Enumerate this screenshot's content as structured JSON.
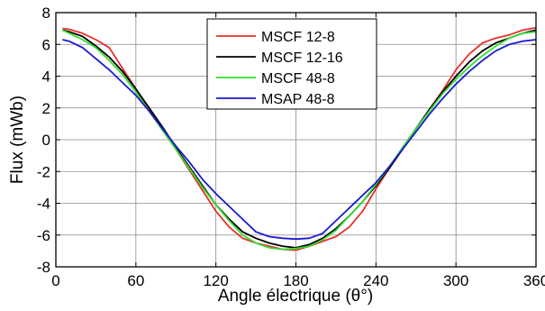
{
  "chart_data": {
    "type": "line",
    "xlabel": "Angle électrique (θ°)",
    "ylabel": "Flux (mWb)",
    "xlim": [
      0,
      360
    ],
    "ylim": [
      -8,
      8
    ],
    "xticks": [
      0,
      60,
      120,
      180,
      240,
      300,
      360
    ],
    "yticks": [
      -8,
      -6,
      -4,
      -2,
      0,
      2,
      4,
      6,
      8
    ],
    "xtick_labels": [
      "0",
      "60",
      "120",
      "180",
      "240",
      "300",
      "360"
    ],
    "ytick_labels": [
      "-8",
      "-6",
      "-4",
      "-2",
      "0",
      "2",
      "4",
      "6",
      "8"
    ],
    "grid": true,
    "legend_position": "top-center",
    "x": [
      5,
      10,
      20,
      30,
      40,
      50,
      60,
      70,
      80,
      90,
      100,
      110,
      120,
      130,
      140,
      150,
      160,
      170,
      180,
      190,
      200,
      210,
      220,
      230,
      240,
      250,
      260,
      270,
      280,
      290,
      300,
      310,
      320,
      330,
      340,
      350,
      360
    ],
    "series": [
      {
        "name": "MSCF 12-8",
        "color": "#e8302a",
        "values": [
          7.0,
          6.95,
          6.7,
          6.3,
          5.8,
          4.5,
          3.2,
          1.9,
          0.6,
          -0.6,
          -1.9,
          -3.2,
          -4.5,
          -5.5,
          -6.2,
          -6.5,
          -6.7,
          -6.9,
          -6.95,
          -6.7,
          -6.4,
          -6.1,
          -5.5,
          -4.5,
          -3.1,
          -1.8,
          -0.5,
          0.7,
          1.9,
          3.1,
          4.4,
          5.4,
          6.1,
          6.4,
          6.6,
          6.9,
          7.05
        ]
      },
      {
        "name": "MSCF 12-16",
        "color": "#000000",
        "values": [
          6.9,
          6.8,
          6.5,
          5.9,
          5.2,
          4.3,
          3.2,
          2.0,
          0.8,
          -0.5,
          -1.7,
          -2.9,
          -4.1,
          -5.0,
          -5.8,
          -6.2,
          -6.5,
          -6.7,
          -6.8,
          -6.6,
          -6.2,
          -5.6,
          -4.8,
          -3.9,
          -2.9,
          -1.8,
          -0.6,
          0.7,
          1.9,
          3.0,
          4.0,
          4.9,
          5.6,
          6.1,
          6.4,
          6.7,
          6.9
        ]
      },
      {
        "name": "MSCF 48-8",
        "color": "#33dd33",
        "values": [
          6.9,
          6.7,
          6.3,
          5.8,
          5.0,
          4.1,
          3.0,
          1.8,
          0.6,
          -0.6,
          -1.8,
          -3.0,
          -4.1,
          -5.1,
          -6.0,
          -6.5,
          -6.8,
          -6.9,
          -6.85,
          -6.7,
          -6.3,
          -5.7,
          -4.8,
          -3.9,
          -2.8,
          -1.7,
          -0.5,
          0.7,
          1.8,
          2.9,
          3.8,
          4.6,
          5.3,
          5.9,
          6.4,
          6.7,
          6.8
        ]
      },
      {
        "name": "MSAP 48-8",
        "color": "#1a1acc",
        "values": [
          6.3,
          6.2,
          5.8,
          5.1,
          4.4,
          3.6,
          2.8,
          1.8,
          0.7,
          -0.4,
          -1.4,
          -2.5,
          -3.4,
          -4.2,
          -5.0,
          -5.8,
          -6.1,
          -6.2,
          -6.25,
          -6.2,
          -5.9,
          -5.1,
          -4.3,
          -3.5,
          -2.7,
          -1.7,
          -0.6,
          0.5,
          1.6,
          2.6,
          3.5,
          4.3,
          5.0,
          5.6,
          6.0,
          6.2,
          6.3
        ]
      }
    ]
  }
}
